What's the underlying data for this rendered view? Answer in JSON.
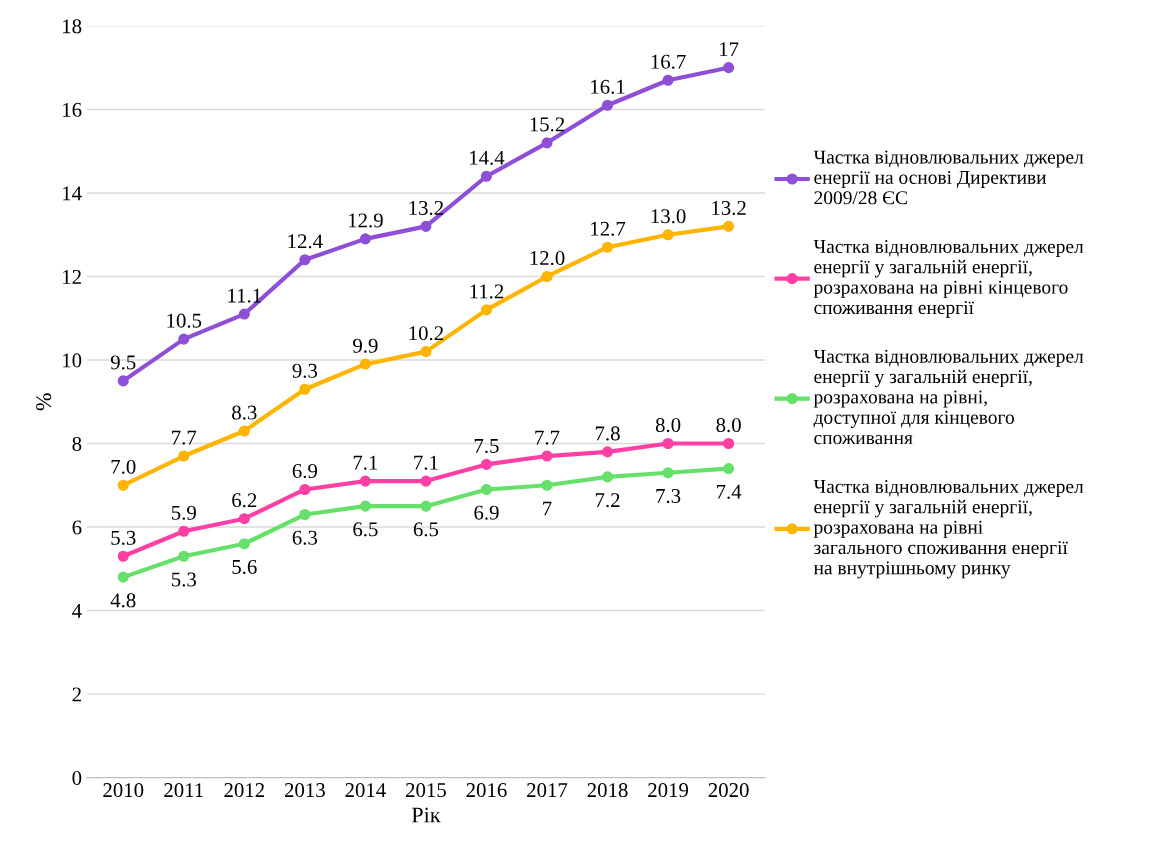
{
  "chart_data": {
    "type": "line",
    "xlabel": "Рік",
    "ylabel": "%",
    "categories": [
      "2010",
      "2011",
      "2012",
      "2013",
      "2014",
      "2015",
      "2016",
      "2017",
      "2018",
      "2019",
      "2020"
    ],
    "ylim": [
      0,
      18
    ],
    "yticks": [
      0,
      2,
      4,
      6,
      8,
      10,
      12,
      14,
      16,
      18
    ],
    "grid": "y",
    "legend": "right",
    "marker": "circle",
    "line_style": "solid",
    "series": [
      {
        "name": "Частка відновлювальних джерел енергії на основі Директиви 2009/28 ЄС",
        "color": "#8e4fd6",
        "values": [
          9.5,
          10.5,
          11.1,
          12.4,
          12.9,
          13.2,
          14.4,
          15.2,
          16.1,
          16.7,
          17
        ],
        "value_labels": [
          "9.5",
          "10.5",
          "11.1",
          "12.4",
          "12.9",
          "13.2",
          "14.4",
          "15.2",
          "16.1",
          "16.7",
          "17"
        ]
      },
      {
        "name": "Частка відновлювальних джерел енергії у загальній енергії, розрахована на рівні кінцевого споживання енергії",
        "color": "#ff3fa4",
        "values": [
          5.3,
          5.9,
          6.2,
          6.9,
          7.1,
          7.1,
          7.5,
          7.7,
          7.8,
          8.0,
          8.0
        ],
        "value_labels": [
          "5.3",
          "5.9",
          "6.2",
          "6.9",
          "7.1",
          "7.1",
          "7.5",
          "7.7",
          "7.8",
          "8.0",
          "8.0"
        ]
      },
      {
        "name": "Частка відновлювальних джерел енергії у загальній енергії, розрахована на рівні, доступної для кінцевого споживання",
        "color": "#66e06a",
        "values": [
          4.8,
          5.3,
          5.6,
          6.3,
          6.5,
          6.5,
          6.9,
          7,
          7.2,
          7.3,
          7.4
        ],
        "value_labels": [
          "4.8",
          "5.3",
          "5.6",
          "6.3",
          "6.5",
          "6.5",
          "6.9",
          "7",
          "7.2",
          "7.3",
          "7.4"
        ]
      },
      {
        "name": "Частка відновлювальних джерел енергії у загальній енергії, розрахована на рівні загального споживання енергії на внутрішньому ринку",
        "color": "#ffb400",
        "values": [
          7.0,
          7.7,
          8.3,
          9.3,
          9.9,
          10.2,
          11.2,
          12.0,
          12.7,
          13.0,
          13.2
        ],
        "value_labels": [
          "7.0",
          "7.7",
          "8.3",
          "9.3",
          "9.9",
          "10.2",
          "11.2",
          "12.0",
          "12.7",
          "13.0",
          "13.2"
        ]
      }
    ]
  }
}
